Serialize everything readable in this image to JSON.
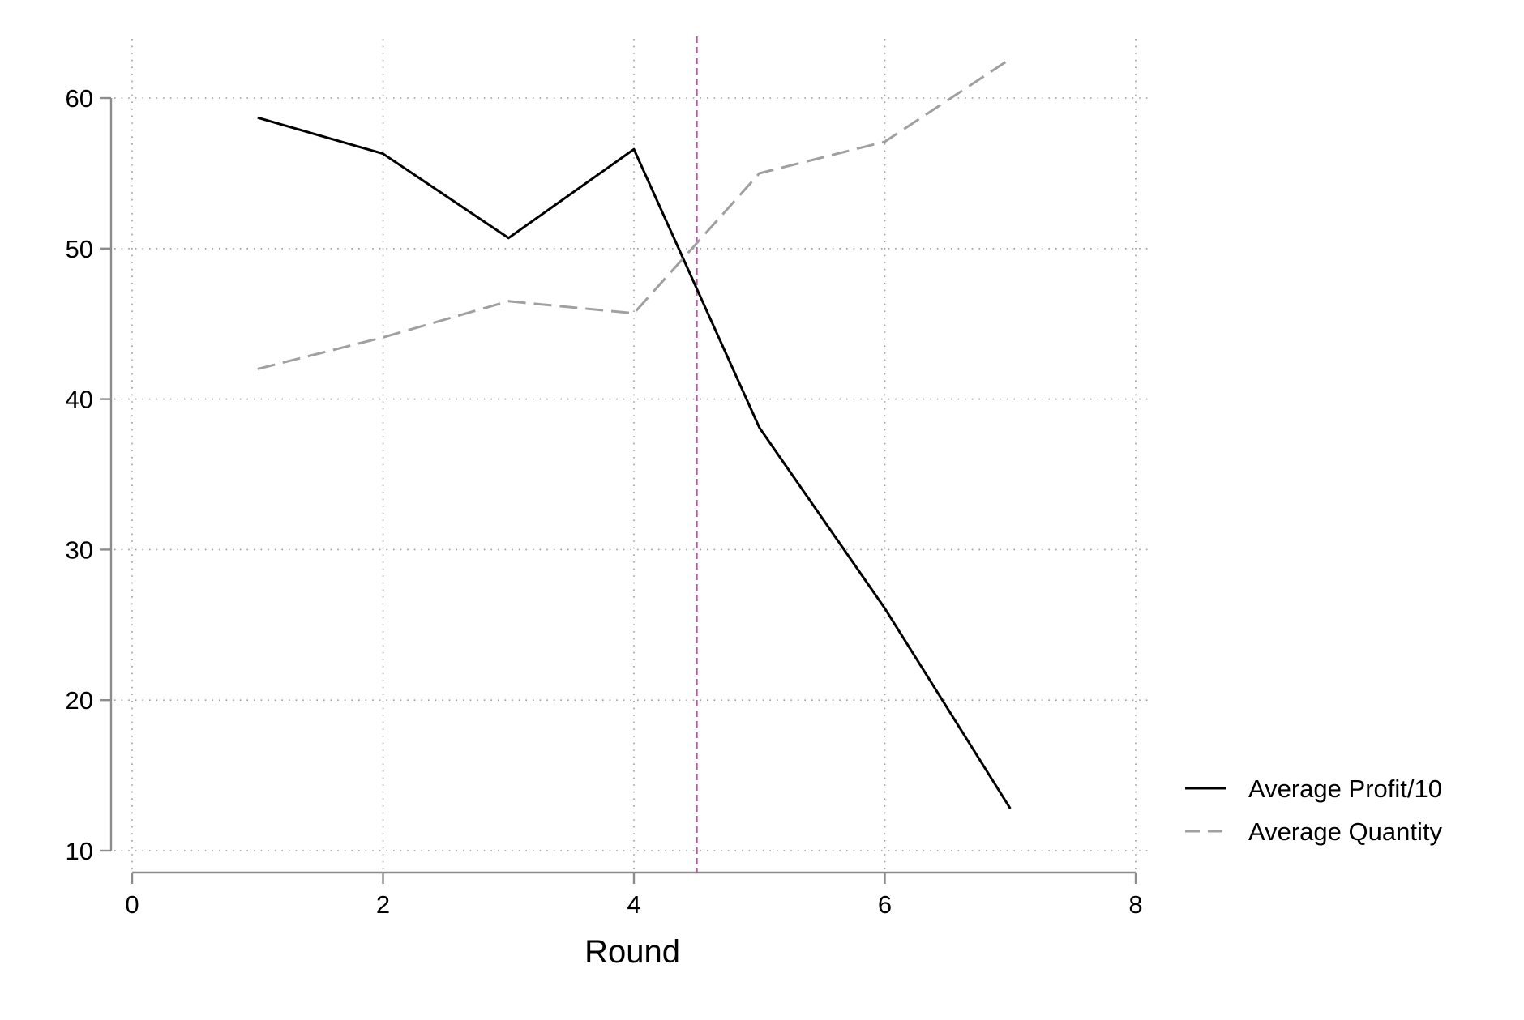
{
  "chart_data": {
    "type": "line",
    "title": "",
    "xlabel": "Round",
    "ylabel": "",
    "xlim": [
      0,
      8
    ],
    "ylim": [
      10,
      60
    ],
    "x_ticks": [
      0,
      2,
      4,
      6,
      8
    ],
    "y_ticks": [
      10,
      20,
      30,
      40,
      50,
      60
    ],
    "grid": true,
    "legend_placement": "right",
    "reference_line": {
      "x": 4.5,
      "color": "#a06a96",
      "style": "dashed"
    },
    "series": [
      {
        "name": "Average Profit/10",
        "color": "#000000",
        "style": "solid",
        "x": [
          1,
          2,
          3,
          4,
          5,
          6,
          7
        ],
        "y": [
          58.7,
          56.3,
          50.7,
          56.6,
          38.1,
          26.1,
          12.8
        ]
      },
      {
        "name": "Average Quantity",
        "color": "#a0a0a0",
        "style": "dashed",
        "x": [
          1,
          2,
          3,
          4,
          5,
          6,
          7
        ],
        "y": [
          42.0,
          44.1,
          46.5,
          45.7,
          55.0,
          57.1,
          62.6
        ]
      }
    ]
  }
}
